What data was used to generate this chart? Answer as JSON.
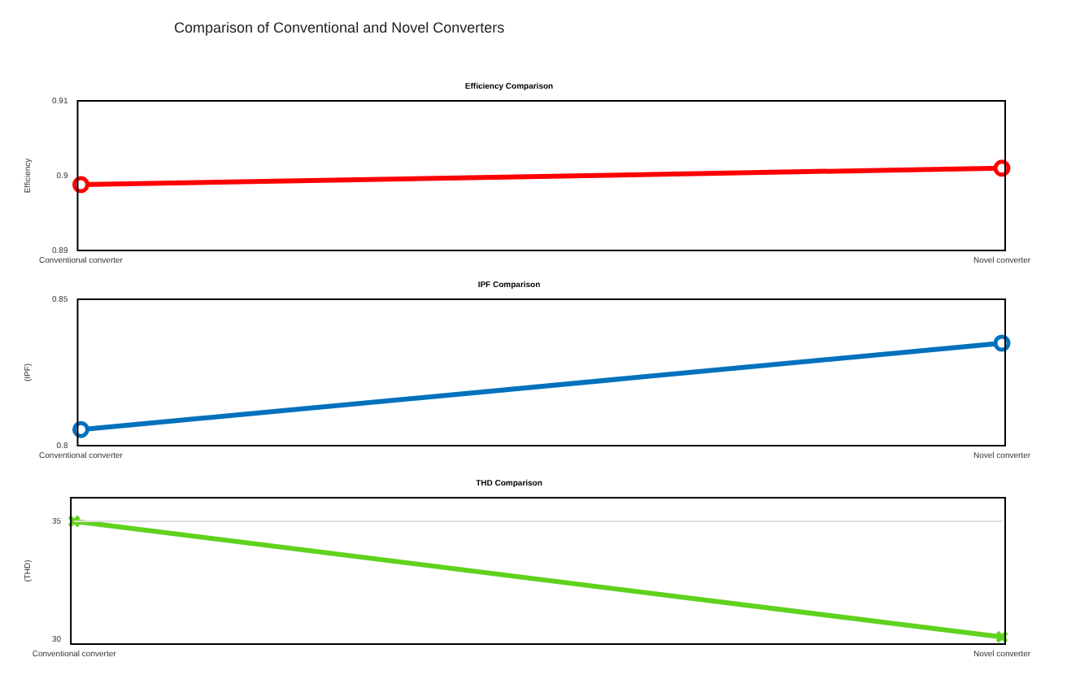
{
  "chart_data": [
    {
      "type": "line",
      "title": "Efficiency Comparison",
      "annotations": [
        "Comparison of Conventional and Novel Converters"
      ],
      "ylabel": "Efficiency",
      "categories": [
        "Conventional converter",
        "Novel converter"
      ],
      "series": [
        {
          "color": "#ff0000",
          "values": [
            0.8988,
            0.901
          ]
        }
      ],
      "ylim": [
        0.89,
        0.91
      ],
      "yticks": [
        0.89,
        0.9,
        0.91
      ],
      "marker": "circle",
      "grid": false,
      "legend": false
    },
    {
      "type": "line",
      "title": "IPF Comparison",
      "ylabel": "(IPF)",
      "categories": [
        "Conventional converter",
        "Novel converter"
      ],
      "series": [
        {
          "color": "#0072bd",
          "values": [
            0.8055,
            0.835
          ]
        }
      ],
      "ylim": [
        0.8,
        0.85
      ],
      "yticks": [
        0.8,
        0.85
      ],
      "marker": "circle",
      "grid": false,
      "legend": false
    },
    {
      "type": "line",
      "title": "THD Comparison",
      "ylabel": "(THD)",
      "categories": [
        "Conventional converter",
        "Novel converter"
      ],
      "series": [
        {
          "color": "#5fd21e",
          "values": [
            35,
            30.1
          ]
        }
      ],
      "ylim": [
        29.8,
        36
      ],
      "yticks": [
        30,
        35
      ],
      "marker": "cross",
      "grid": false,
      "legend": false,
      "ref_lines": [
        {
          "axis": "y",
          "value": 35,
          "color": "#dddddd"
        }
      ]
    }
  ]
}
